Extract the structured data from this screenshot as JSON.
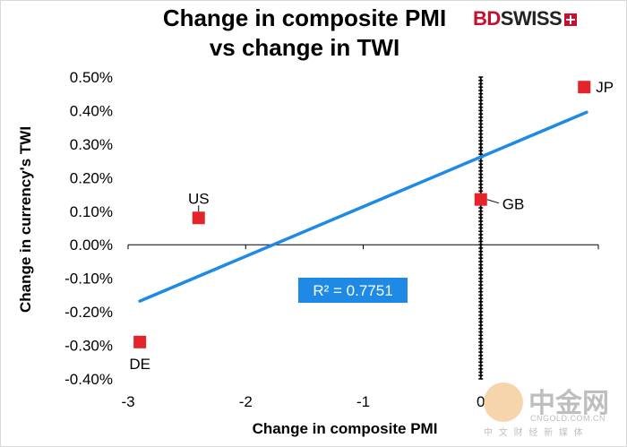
{
  "chart_data": {
    "type": "scatter",
    "title": "Change in composite PMI vs change in TWI",
    "title_lines": [
      "Change in composite PMI",
      "vs change in TWI"
    ],
    "xlabel": "Change in composite PMI",
    "ylabel": "Change in currency's  TWI",
    "xlim": [
      -3,
      1
    ],
    "ylim": [
      -0.004,
      0.005
    ],
    "x_ticks": [
      -3,
      -2,
      -1,
      0
    ],
    "x_tick_labels": [
      "-3",
      "-2",
      "-1",
      "0"
    ],
    "y_ticks": [
      0.005,
      0.004,
      0.003,
      0.002,
      0.001,
      0,
      -0.001,
      -0.002,
      -0.003,
      -0.004
    ],
    "y_tick_labels": [
      "0.50%",
      "0.40%",
      "0.30%",
      "0.20%",
      "0.10%",
      "0.00%",
      "-0.10%",
      "-0.20%",
      "-0.30%",
      "-0.40%"
    ],
    "points": [
      {
        "label": "US",
        "x": -2.4,
        "y": 0.0008
      },
      {
        "label": "DE",
        "x": -2.9,
        "y": -0.0029
      },
      {
        "label": "GB",
        "x": 0.0,
        "y": 0.00135
      },
      {
        "label": "JP",
        "x": 0.88,
        "y": 0.0047
      }
    ],
    "trendline": {
      "x": [
        -2.9,
        0.9
      ],
      "y": [
        -0.00168,
        0.00395
      ]
    },
    "r_squared_label": "R² = 0.7751",
    "marker_color": "#e3242b",
    "line_color": "#1f8ae6",
    "annotation_bg": "#1f8ae6"
  },
  "branding": {
    "logo_bd": "BD",
    "logo_swiss": "SWISS",
    "watermark_big": "中金网",
    "watermark_url": "CNGOLD.COM.CN",
    "watermark_sub": "中 文 财 经 新 媒 体"
  }
}
